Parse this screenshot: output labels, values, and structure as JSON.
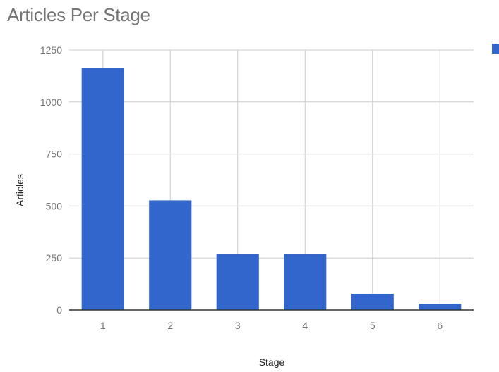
{
  "chart_data": {
    "type": "bar",
    "title": "Articles Per Stage",
    "xlabel": "Stage",
    "ylabel": "Articles",
    "categories": [
      "1",
      "2",
      "3",
      "4",
      "5",
      "6"
    ],
    "series": [
      {
        "values": [
          1165,
          527,
          270,
          270,
          78,
          30
        ]
      }
    ],
    "ylim": [
      0,
      1250
    ],
    "yticks": [
      "0",
      "250",
      "500",
      "750",
      "1000",
      "1250"
    ],
    "grid": true,
    "legend": "right",
    "colors": {
      "bar": "#3366cc",
      "grid": "#cccccc",
      "axis": "#333333",
      "tick": "#757575"
    }
  }
}
